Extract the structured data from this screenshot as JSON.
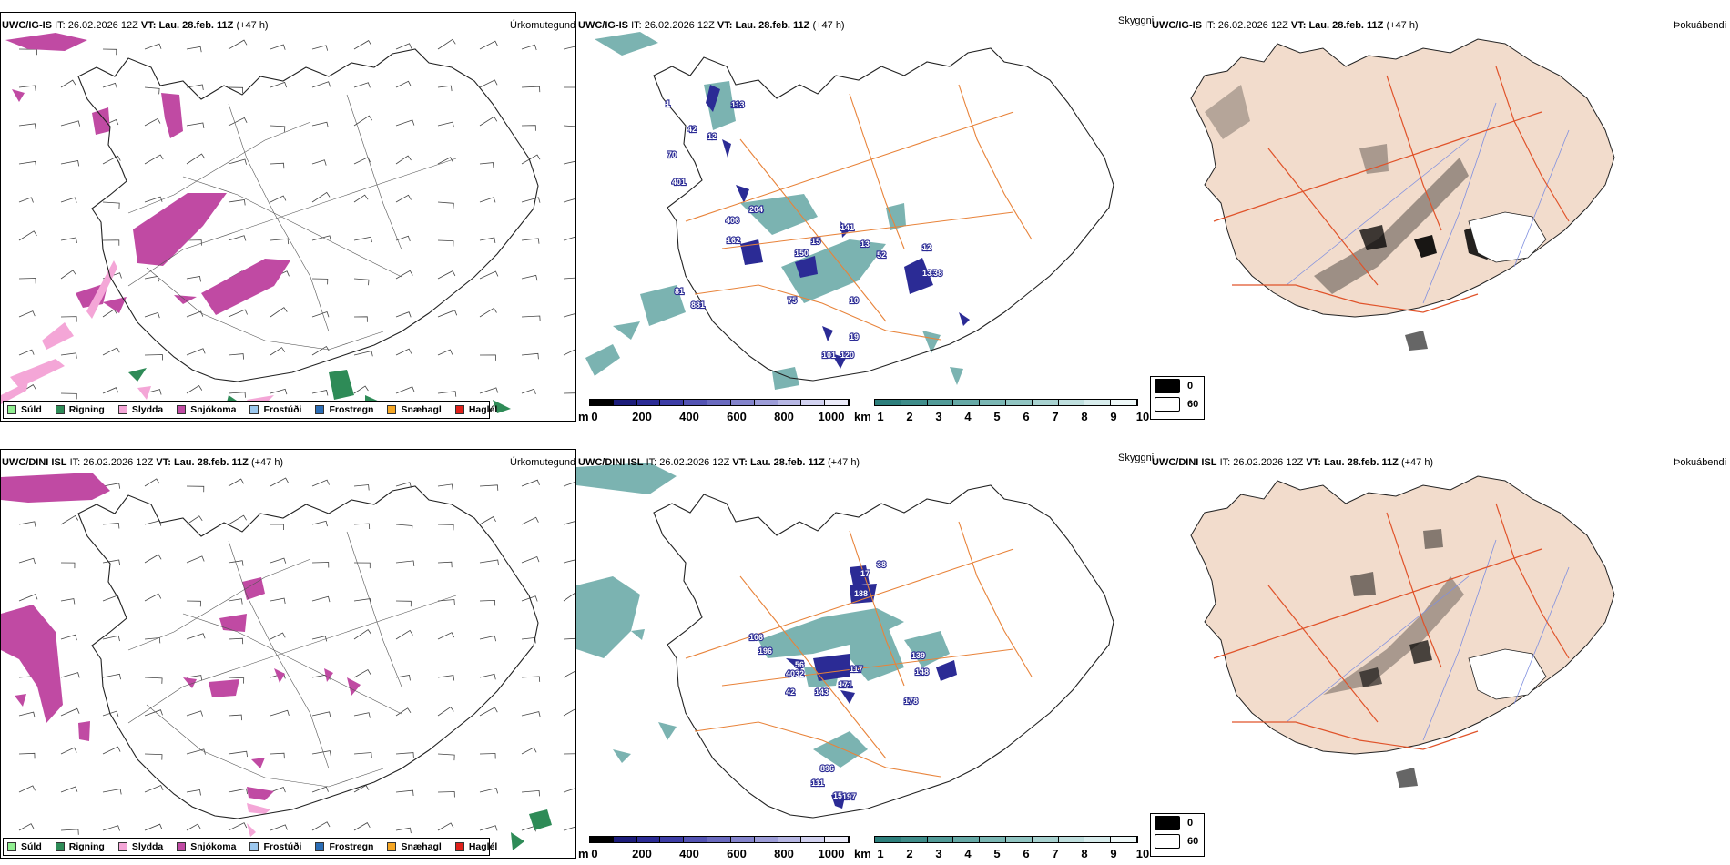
{
  "header": {
    "model_top": "UWC/IG-IS",
    "model_bottom": "UWC/DINI ISL",
    "it_label": "IT:",
    "it_value": "26.02.2026 12Z",
    "vt_label": "VT:",
    "vt_value": "Lau. 28.feb. 11Z",
    "lead": "(+47 h)"
  },
  "panel_names": {
    "precip": "Úrkomutegund",
    "visibility": "Skyggni",
    "fog": "Þokuábendi"
  },
  "precip_legend": [
    {
      "label": "Súld",
      "color": "#90ee90"
    },
    {
      "label": "Rigning",
      "color": "#2e8b57"
    },
    {
      "label": "Slydda",
      "color": "#f4a6d7"
    },
    {
      "label": "Snjókoma",
      "color": "#c04aa3"
    },
    {
      "label": "Frostúði",
      "color": "#9cc8ef"
    },
    {
      "label": "Frostregn",
      "color": "#2a6cb5"
    },
    {
      "label": "Snæhagl",
      "color": "#f5a623"
    },
    {
      "label": "Haglél",
      "color": "#e0201a"
    }
  ],
  "ceiling_colorbar": {
    "unit": "m",
    "ticks": [
      "0",
      "200",
      "400",
      "600",
      "800",
      "1000"
    ],
    "colors": [
      "#000000",
      "#1c1c7a",
      "#2b2b95",
      "#3d3da6",
      "#5353b3",
      "#6a6abf",
      "#8484cc",
      "#9d9dd8",
      "#b7b7e4",
      "#d2d2f0",
      "#ebebf9"
    ]
  },
  "visibility_colorbar": {
    "unit": "km",
    "ticks": [
      "1",
      "2",
      "3",
      "4",
      "5",
      "6",
      "7",
      "8",
      "9",
      "10"
    ],
    "colors": [
      "#2d7f7c",
      "#3f8d8a",
      "#529b98",
      "#66a9a6",
      "#7bb7b4",
      "#91c5c2",
      "#a8d2d0",
      "#bfdfde",
      "#d7ecec",
      "#eef8f8"
    ]
  },
  "fog_legend": [
    {
      "label": "0",
      "color": "#000000"
    },
    {
      "label": "60",
      "color": "#ffffff"
    }
  ],
  "ceiling_labels_top": [
    "113",
    "1",
    "42",
    "12",
    "70",
    "401",
    "204",
    "406",
    "162",
    "150",
    "15",
    "141",
    "13",
    "12",
    "81",
    "75",
    "133",
    "10",
    "881",
    "120",
    "101",
    "19",
    "38",
    "52"
  ],
  "ceiling_labels_bottom": [
    "17",
    "188",
    "38",
    "196",
    "56",
    "32",
    "117",
    "143",
    "42",
    "171",
    "148",
    "178",
    "139",
    "896",
    "111",
    "15",
    "197",
    "40",
    "106"
  ],
  "colors": {
    "snow": "#c04aa3",
    "sleet": "#f4a6d7",
    "rain": "#2e8b57",
    "vis": "#4f9a97",
    "ceiling": "#2b2b95",
    "road": "#e8833a",
    "land": "#f2dccc",
    "river": "#7f8fe0",
    "fogroad": "#e0532a"
  }
}
